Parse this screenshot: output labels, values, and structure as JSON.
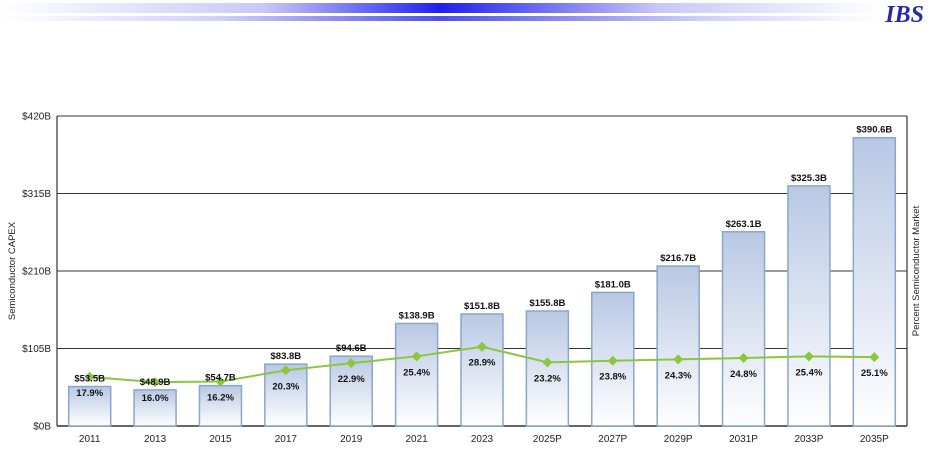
{
  "header": {
    "logo_text": "IBS"
  },
  "chart_data": {
    "type": "bar",
    "categories": [
      "2011",
      "2013",
      "2015",
      "2017",
      "2019",
      "2021",
      "2023",
      "2025P",
      "2027P",
      "2029P",
      "2031P",
      "2033P",
      "2035P"
    ],
    "series": [
      {
        "name": "Semiconductor CAPEX",
        "type": "bar",
        "values": [
          53.5,
          48.9,
          54.7,
          83.8,
          94.6,
          138.9,
          151.8,
          155.8,
          181.0,
          216.7,
          263.1,
          325.3,
          390.6
        ],
        "labels": [
          "$53.5B",
          "$48.9B",
          "$54.7B",
          "$83.8B",
          "$94.6B",
          "$138.9B",
          "$151.8B",
          "$155.8B",
          "$181.0B",
          "$216.7B",
          "$263.1B",
          "$325.3B",
          "$390.6B"
        ]
      },
      {
        "name": "Percent Semiconductor Market",
        "type": "line",
        "values": [
          17.9,
          16.0,
          16.2,
          20.3,
          22.9,
          25.4,
          28.9,
          23.2,
          23.8,
          24.3,
          24.8,
          25.4,
          25.1
        ],
        "labels": [
          "17.9%",
          "16.0%",
          "16.2%",
          "20.3%",
          "22.9%",
          "25.4%",
          "28.9%",
          "23.2%",
          "23.8%",
          "24.3%",
          "24.8%",
          "25.4%",
          "25.1%"
        ]
      }
    ],
    "ylabel": "Semiconductor CAPEX",
    "y2label": "Percent Semiconductor Market",
    "ylim": [
      0,
      420
    ],
    "y2lim": [
      0,
      113
    ],
    "yticks": [
      "$0B",
      "$105B",
      "$210B",
      "$315B",
      "$420B"
    ],
    "ytick_values": [
      0,
      105,
      210,
      315,
      420
    ],
    "grid": true,
    "colors": {
      "bar_top": "#b8c8e4",
      "bar_bottom": "#ffffff",
      "bar_edge": "#8aa6cc",
      "line": "#8cc63f"
    }
  }
}
